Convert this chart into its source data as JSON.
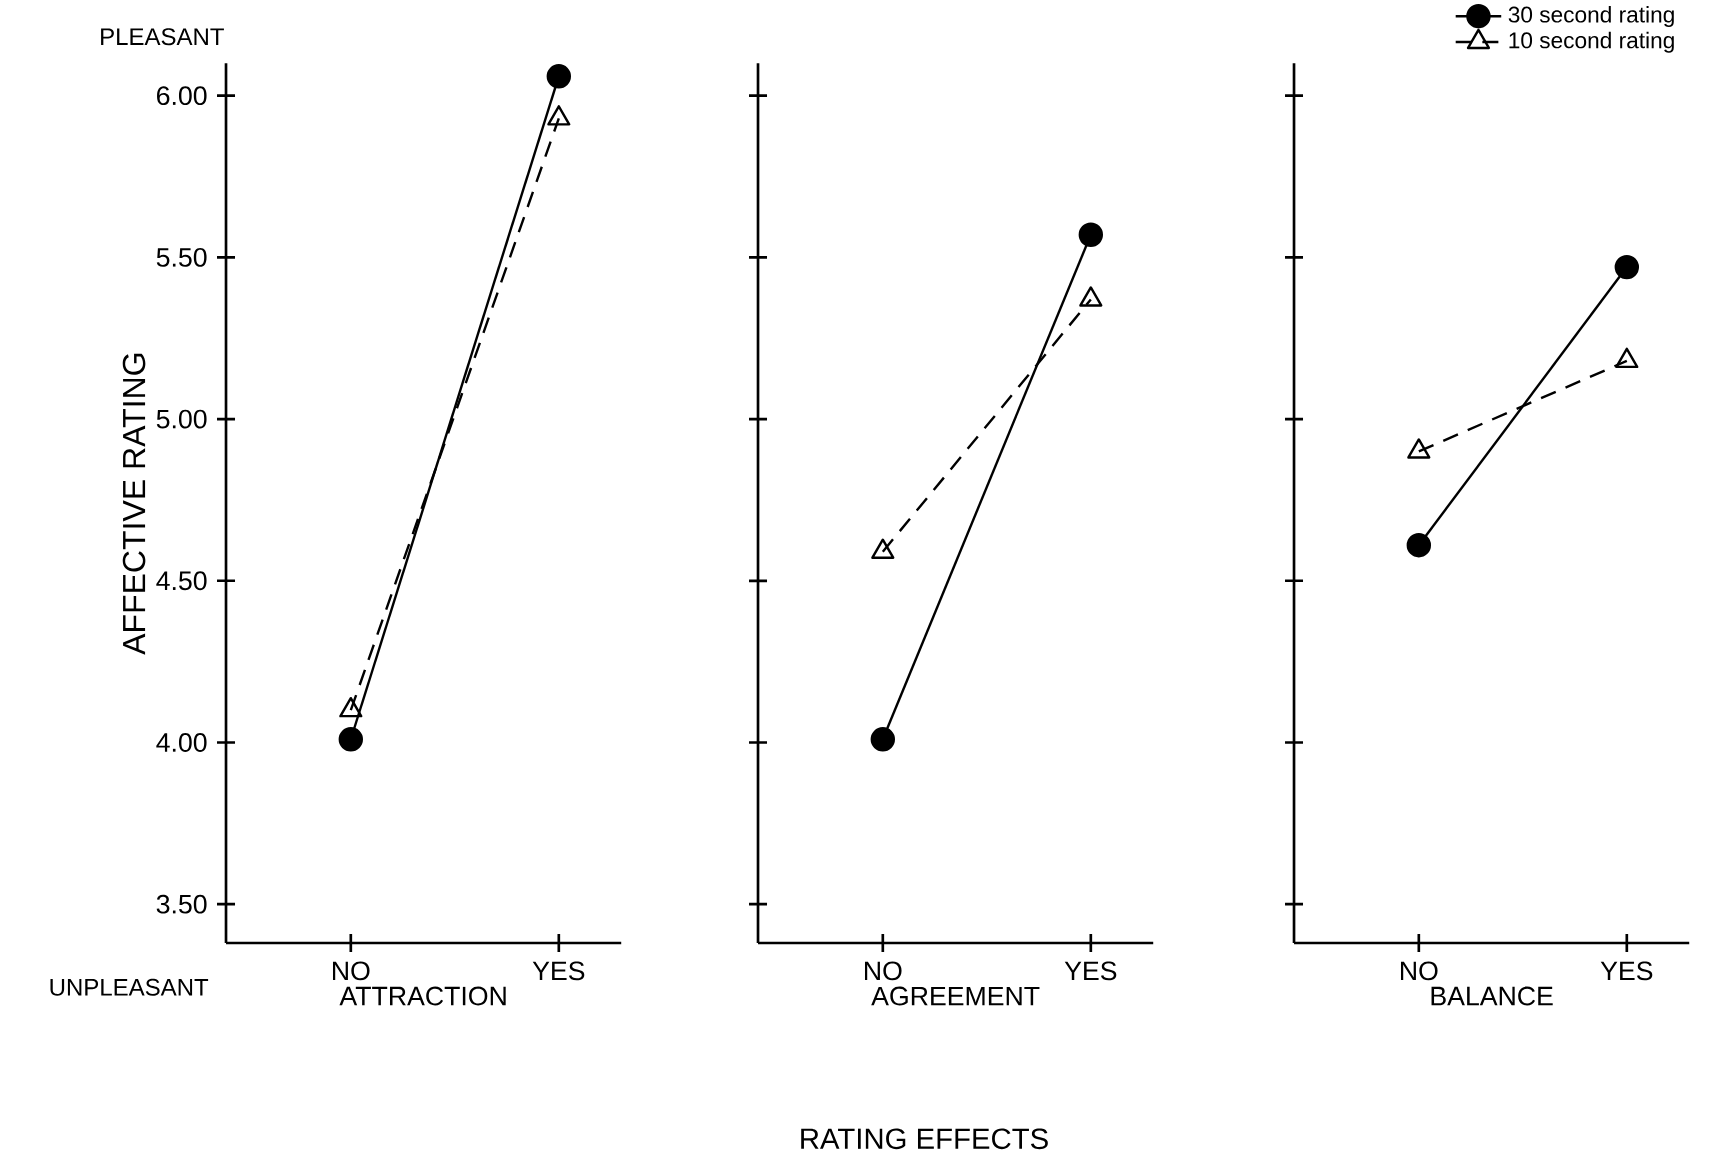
{
  "chart_data": [
    {
      "type": "line",
      "ylabel": "AFFECTIVE RATING",
      "xlabel": "ATTRACTION",
      "categories": [
        "NO",
        "YES"
      ],
      "ylim": [
        3.38,
        6.1
      ],
      "yticks": [
        {
          "value": 3.5,
          "label": "3.50"
        },
        {
          "value": 4.0,
          "label": "4.00"
        },
        {
          "value": 4.5,
          "label": "4.50"
        },
        {
          "value": 5.0,
          "label": "5.00"
        },
        {
          "value": 5.5,
          "label": "5.50"
        },
        {
          "value": 6.0,
          "label": "6.00"
        }
      ],
      "grid": false,
      "legend": false,
      "annotations": [
        "PLEASANT",
        "UNPLEASANT"
      ],
      "series": [
        {
          "color": "#000000",
          "marker": "circle",
          "line_style": "solid",
          "values": [
            4.01,
            6.06
          ]
        },
        {
          "color": "#000000",
          "marker": "triangle",
          "line_style": "dashed",
          "values": [
            4.1,
            5.93
          ]
        }
      ]
    },
    {
      "type": "line",
      "xlabel": "AGREEMENT",
      "categories": [
        "NO",
        "YES"
      ],
      "ylim": [
        3.38,
        6.1
      ],
      "yticks": [
        3.5,
        4.0,
        4.5,
        5.0,
        5.5,
        6.0
      ],
      "tick_labels": "x",
      "grid": false,
      "legend": false,
      "annotations": [
        "RATING EFFECTS"
      ],
      "series": [
        {
          "color": "#000000",
          "marker": "circle",
          "line_style": "solid",
          "values": [
            4.01,
            5.57
          ]
        },
        {
          "color": "#000000",
          "marker": "triangle",
          "line_style": "dashed",
          "values": [
            4.59,
            5.37
          ]
        }
      ]
    },
    {
      "type": "line",
      "xlabel": "BALANCE",
      "categories": [
        "NO",
        "YES"
      ],
      "ylim": [
        3.38,
        6.1
      ],
      "yticks": [
        3.5,
        4.0,
        4.5,
        5.0,
        5.5,
        6.0
      ],
      "tick_labels": "x",
      "grid": false,
      "legend": "top right",
      "series": [
        {
          "name": "30 second rating",
          "color": "#000000",
          "marker": "circle",
          "line_style": "solid",
          "values": [
            4.61,
            5.47
          ]
        },
        {
          "name": "10 second rating",
          "color": "#000000",
          "marker": "triangle",
          "line_style": "dashed",
          "values": [
            4.9,
            5.18
          ]
        }
      ]
    }
  ]
}
